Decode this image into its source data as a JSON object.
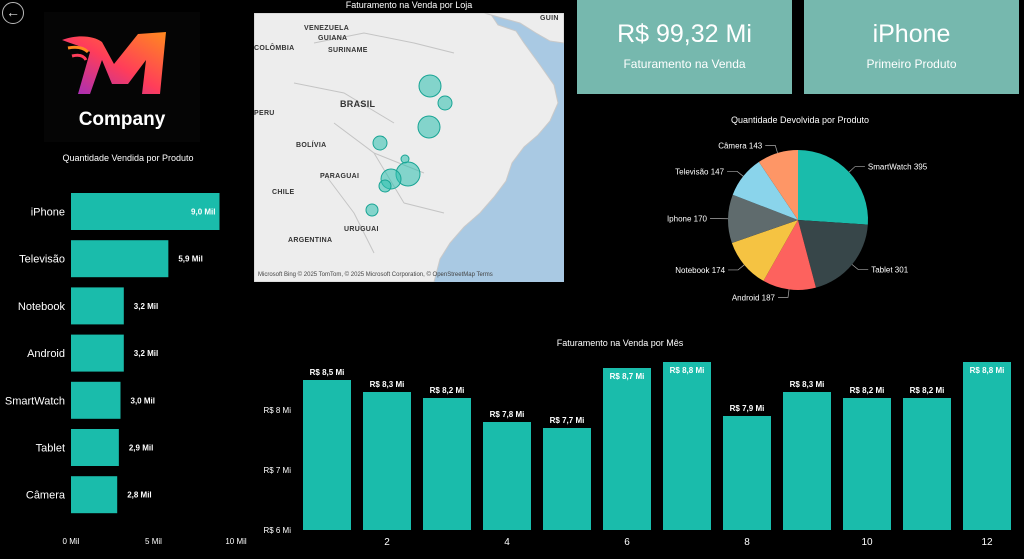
{
  "nav": {
    "back_icon": "arrow-left-icon",
    "back_glyph": "←"
  },
  "brand": {
    "name": "Company",
    "logo_colors": [
      "#ff3d5a",
      "#ff8a1f",
      "#9b2cc4"
    ]
  },
  "kpis": [
    {
      "value": "R$ 99,32 Mi",
      "label": "Faturamento na Venda"
    },
    {
      "value": "iPhone",
      "label": "Primeiro Produto"
    }
  ],
  "map": {
    "title": "Faturamento na Venda por Loja",
    "labels": [
      "VENEZUELA",
      "GUIANA",
      "COLÔMBIA",
      "SURINAME",
      "GUIN",
      "BRASIL",
      "PERU",
      "BOLÍVIA",
      "PARAGUAI",
      "CHILE",
      "URUGUAI",
      "ARGENTINA"
    ],
    "footer": "Microsoft Bing  © 2025 TomTom, © 2025 Microsoft Corporation, © OpenStreetMap  Terms",
    "bubble_color": "#2bbfaf"
  },
  "colors": {
    "accent": "#1abcab",
    "kpi_bg": "#76b8ae",
    "background": "#000000"
  },
  "chart_data": [
    {
      "type": "bar",
      "orientation": "horizontal",
      "title": "Quantidade Vendida por Produto",
      "categories": [
        "iPhone",
        "Televisão",
        "Notebook",
        "Android",
        "SmartWatch",
        "Tablet",
        "Câmera"
      ],
      "values": [
        9.0,
        5.9,
        3.2,
        3.2,
        3.0,
        2.9,
        2.8
      ],
      "data_labels": [
        "9,0 Mil",
        "5,9 Mil",
        "3,2 Mil",
        "3,2 Mil",
        "3,0 Mil",
        "2,9 Mil",
        "2,8 Mil"
      ],
      "xlim": [
        0,
        10
      ],
      "xticks": [
        0,
        5,
        10
      ],
      "xtick_labels": [
        "0 Mil",
        "5 Mil",
        "10 Mil"
      ],
      "color": "#1abcab"
    },
    {
      "type": "pie",
      "title": "Quantidade Devolvida por Produto",
      "categories": [
        "SmartWatch",
        "Tablet",
        "Android",
        "Notebook",
        "Iphone",
        "Televisão",
        "Câmera"
      ],
      "values": [
        395,
        301,
        187,
        174,
        170,
        147,
        143
      ],
      "labels": [
        "SmartWatch 395",
        "Tablet 301",
        "Android 187",
        "Notebook 174",
        "Iphone 170",
        "Televisão 147",
        "Câmera 143"
      ],
      "colors": [
        "#1abcab",
        "#374649",
        "#fd625e",
        "#f5c342",
        "#5f6b6d",
        "#8ad4eb",
        "#fe9666"
      ]
    },
    {
      "type": "bar",
      "title": "Faturamento na Venda por Mês",
      "categories": [
        1,
        2,
        3,
        4,
        5,
        6,
        7,
        8,
        9,
        10,
        11,
        12
      ],
      "values": [
        8.5,
        8.3,
        8.2,
        7.8,
        7.7,
        8.7,
        8.8,
        7.9,
        8.3,
        8.2,
        8.2,
        8.8
      ],
      "data_labels": [
        "R$ 8,5 Mi",
        "R$ 8,3 Mi",
        "R$ 8,2 Mi",
        "R$ 7,8 Mi",
        "R$ 7,7 Mi",
        "R$ 8,7 Mi",
        "R$ 8,8 Mi",
        "R$ 7,9 Mi",
        "R$ 8,3 Mi",
        "R$ 8,2 Mi",
        "R$ 8,2 Mi",
        "R$ 8,8 Mi"
      ],
      "xtick_labels": [
        "2",
        "4",
        "6",
        "8",
        "10",
        "12"
      ],
      "ylim": [
        6,
        9
      ],
      "yticks": [
        6,
        7,
        8
      ],
      "ytick_labels": [
        "R$ 6 Mi",
        "R$ 7 Mi",
        "R$ 8 Mi"
      ],
      "color": "#1abcab"
    }
  ]
}
